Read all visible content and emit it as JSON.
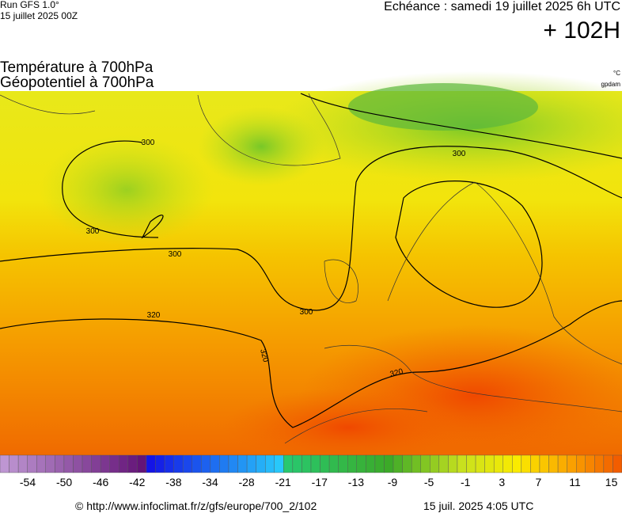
{
  "header": {
    "run": "Run GFS 1.0°",
    "init": "15 juillet 2025 00Z",
    "valid": "Echéance : samedi 19 juillet 2025 6h UTC",
    "lead": "+ 102H",
    "title1": "Température à 700hPa",
    "title2": "Géopotentiel à 700hPa",
    "unit": "°C",
    "unit2": "gpdam"
  },
  "contour_labels": [
    "300",
    "300",
    "300",
    "300",
    "300",
    "320",
    "320",
    "320"
  ],
  "legend": {
    "labels": [
      "-54",
      "-50",
      "-46",
      "-42",
      "-38",
      "-34",
      "-28",
      "-21",
      "-17",
      "-13",
      "-9",
      "-5",
      "-1",
      "3",
      "7",
      "11",
      "15"
    ]
  },
  "footer": {
    "source": "© http://www.infoclimat.fr/z/gfs/europe/700_2/102",
    "date": "15 juil. 2025  4:05 UTC"
  }
}
